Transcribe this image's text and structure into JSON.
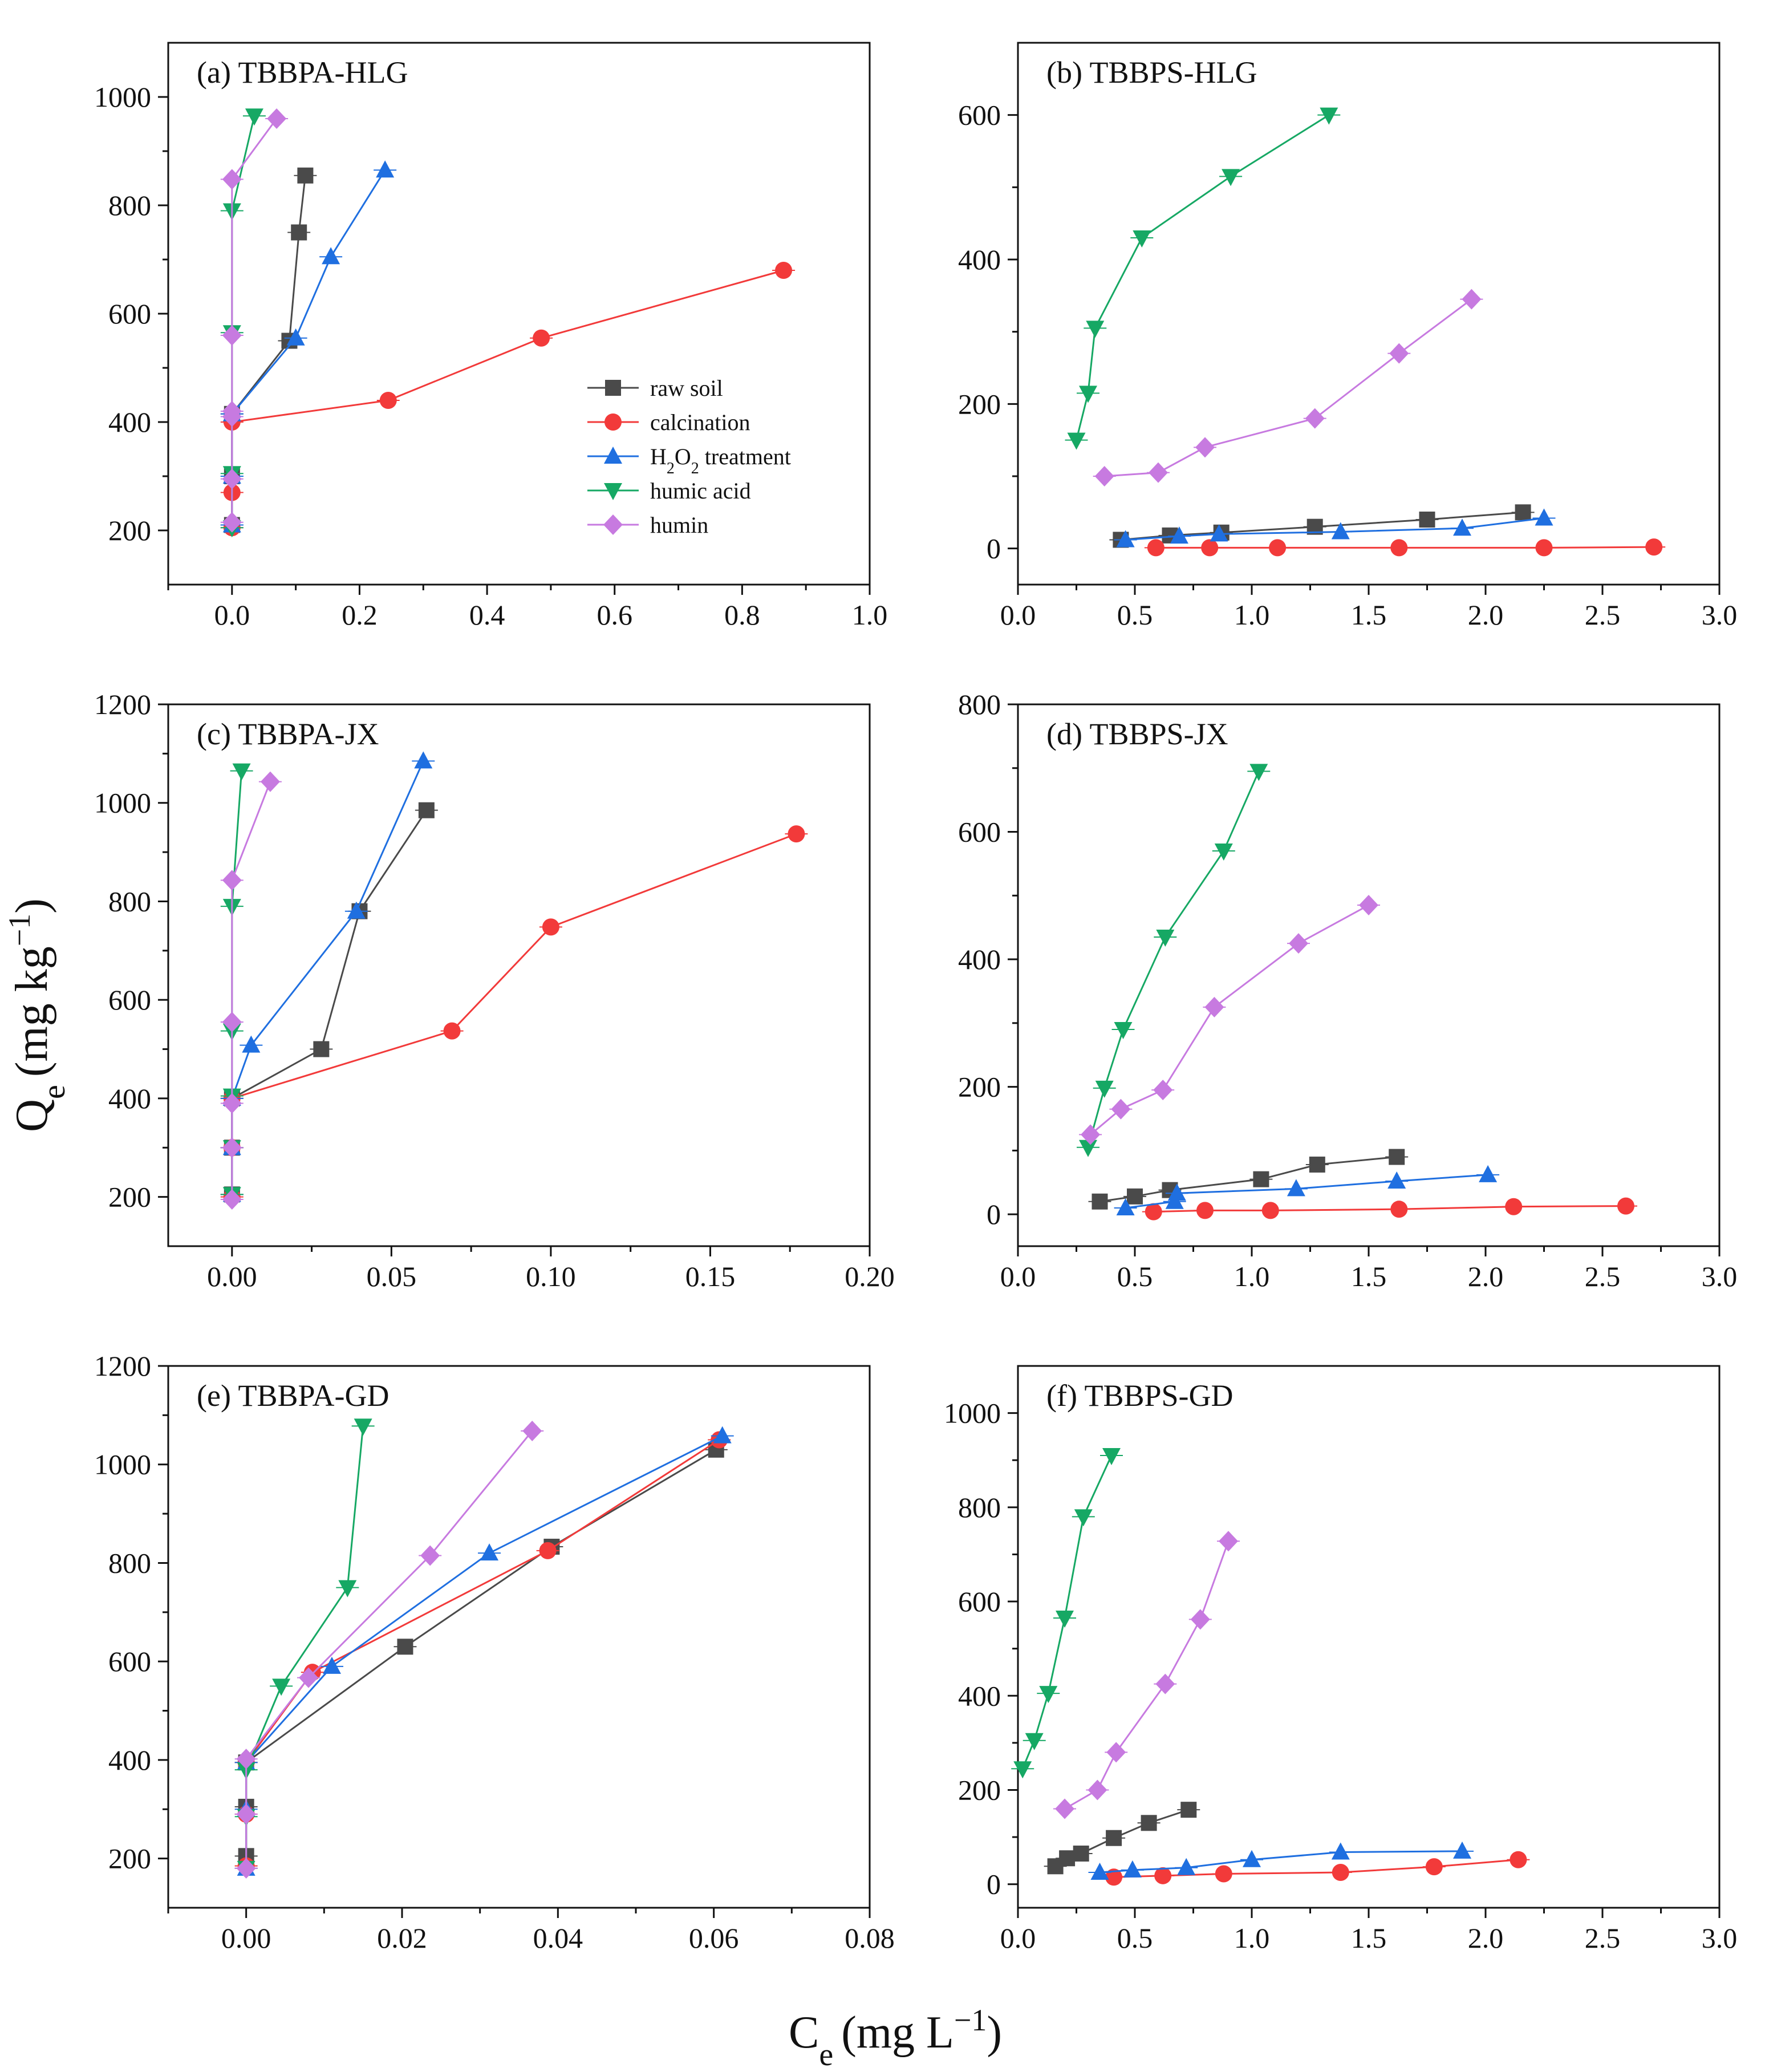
{
  "figure": {
    "ylabel_main": "Q",
    "ylabel_sub": "e",
    "ylabel_unit": "(mg kg",
    "ylabel_exp": "−1",
    "ylabel_close": ")",
    "xlabel_main": "C",
    "xlabel_sub": "e",
    "xlabel_unit": "(mg L",
    "xlabel_exp": "−1",
    "xlabel_close": ")"
  },
  "series_styles": [
    {
      "key": "raw",
      "name": "raw soil",
      "color": "#4a4a4a",
      "marker": "square"
    },
    {
      "key": "cal",
      "name": "calcination",
      "color": "#f23a3a",
      "marker": "circle"
    },
    {
      "key": "h2o2",
      "name": "H2O2 treatment",
      "name_parts": [
        "H",
        "2",
        "O",
        "2",
        " treatment"
      ],
      "color": "#1f6fe0",
      "marker": "triangle-up"
    },
    {
      "key": "ha",
      "name": "humic acid",
      "color": "#16a864",
      "marker": "triangle-down"
    },
    {
      "key": "hum",
      "name": "humin",
      "color": "#c77ae0",
      "marker": "diamond"
    }
  ],
  "chart_data": [
    {
      "id": "a",
      "type": "line",
      "title": "(a)  TBBPA-HLG",
      "xlim": [
        -0.1,
        1.0
      ],
      "ylim": [
        100,
        1100
      ],
      "xticks": [
        0.0,
        0.2,
        0.4,
        0.6,
        0.8,
        1.0
      ],
      "xtick_labels": [
        "0.0",
        "0.2",
        "0.4",
        "0.6",
        "0.8",
        "1.0"
      ],
      "yticks": [
        200,
        400,
        600,
        800,
        1000
      ],
      "ytick_labels": [
        "200",
        "400",
        "600",
        "800",
        "1000"
      ],
      "legend": true,
      "series": [
        {
          "key": "raw",
          "x": [
            0.0,
            0.0,
            0.0,
            0.09,
            0.105,
            0.115
          ],
          "y": [
            210,
            300,
            415,
            550,
            750,
            855
          ]
        },
        {
          "key": "cal",
          "x": [
            0.0,
            0.0,
            0.0,
            0.245,
            0.485,
            0.865
          ],
          "y": [
            205,
            270,
            400,
            440,
            555,
            680
          ]
        },
        {
          "key": "h2o2",
          "x": [
            0.0,
            0.0,
            0.0,
            0.1,
            0.155,
            0.24
          ],
          "y": [
            210,
            300,
            415,
            555,
            705,
            865
          ]
        },
        {
          "key": "ha",
          "x": [
            0.0,
            0.0,
            0.0,
            0.0,
            0.035
          ],
          "y": [
            205,
            305,
            565,
            790,
            965
          ]
        },
        {
          "key": "hum",
          "x": [
            0.0,
            0.0,
            0.0,
            0.0,
            0.0,
            0.0,
            0.07
          ],
          "y": [
            215,
            295,
            410,
            420,
            560,
            848,
            960
          ]
        }
      ]
    },
    {
      "id": "b",
      "type": "line",
      "title": "(b)  TBBPS-HLG",
      "xlim": [
        0.0,
        3.0
      ],
      "ylim": [
        -50,
        700
      ],
      "xticks": [
        0.0,
        0.5,
        1.0,
        1.5,
        2.0,
        2.5,
        3.0
      ],
      "xtick_labels": [
        "0.0",
        "0.5",
        "1.0",
        "1.5",
        "2.0",
        "2.5",
        "3.0"
      ],
      "yticks": [
        0,
        200,
        400,
        600
      ],
      "ytick_labels": [
        "0",
        "200",
        "400",
        "600"
      ],
      "legend": false,
      "series": [
        {
          "key": "raw",
          "x": [
            0.44,
            0.65,
            0.87,
            1.27,
            1.75,
            2.16
          ],
          "y": [
            12,
            18,
            22,
            30,
            40,
            50
          ]
        },
        {
          "key": "cal",
          "x": [
            0.59,
            0.82,
            1.11,
            1.63,
            2.25,
            2.72
          ],
          "y": [
            1,
            1,
            1,
            1,
            1,
            2
          ]
        },
        {
          "key": "h2o2",
          "x": [
            0.46,
            0.69,
            0.86,
            1.38,
            1.9,
            2.25
          ],
          "y": [
            12,
            17,
            20,
            23,
            28,
            42
          ]
        },
        {
          "key": "ha",
          "x": [
            0.25,
            0.3,
            0.33,
            0.53,
            0.91,
            1.33
          ],
          "y": [
            150,
            215,
            305,
            430,
            515,
            600
          ]
        },
        {
          "key": "hum",
          "x": [
            0.37,
            0.6,
            0.8,
            1.27,
            1.63,
            1.94
          ],
          "y": [
            100,
            105,
            140,
            180,
            270,
            345
          ]
        }
      ]
    },
    {
      "id": "c",
      "type": "line",
      "title": "(c)  TBBPA-JX",
      "xlim": [
        -0.02,
        0.2
      ],
      "ylim": [
        100,
        1200
      ],
      "xticks": [
        0.0,
        0.05,
        0.1,
        0.15,
        0.2
      ],
      "xtick_labels": [
        "0.00",
        "0.05",
        "0.10",
        "0.15",
        "0.20"
      ],
      "yticks": [
        200,
        400,
        600,
        800,
        1000,
        1200
      ],
      "ytick_labels": [
        "200",
        "400",
        "600",
        "800",
        "1000",
        "1200"
      ],
      "legend": false,
      "series": [
        {
          "key": "raw",
          "x": [
            0.0,
            0.0,
            0.0,
            0.028,
            0.04,
            0.061
          ],
          "y": [
            205,
            300,
            400,
            500,
            780,
            985
          ]
        },
        {
          "key": "cal",
          "x": [
            0.0,
            0.0,
            0.0,
            0.069,
            0.1,
            0.177
          ],
          "y": [
            200,
            300,
            400,
            537,
            748,
            937
          ]
        },
        {
          "key": "h2o2",
          "x": [
            0.0,
            0.0,
            0.0,
            0.006,
            0.039,
            0.06
          ],
          "y": [
            205,
            300,
            400,
            508,
            780,
            1085
          ]
        },
        {
          "key": "ha",
          "x": [
            0.0,
            0.0,
            0.0,
            0.0,
            0.0,
            0.003
          ],
          "y": [
            205,
            300,
            405,
            537,
            790,
            1065
          ]
        },
        {
          "key": "hum",
          "x": [
            0.0,
            0.0,
            0.0,
            0.0,
            0.0,
            0.012
          ],
          "y": [
            195,
            300,
            390,
            555,
            843,
            1043
          ]
        }
      ]
    },
    {
      "id": "d",
      "type": "line",
      "title": "(d)  TBBPS-JX",
      "xlim": [
        0.0,
        3.0
      ],
      "ylim": [
        -50,
        800
      ],
      "xticks": [
        0.0,
        0.5,
        1.0,
        1.5,
        2.0,
        2.5,
        3.0
      ],
      "xtick_labels": [
        "0.0",
        "0.5",
        "1.0",
        "1.5",
        "2.0",
        "2.5",
        "3.0"
      ],
      "yticks": [
        0,
        200,
        400,
        600,
        800
      ],
      "ytick_labels": [
        "0",
        "200",
        "400",
        "600",
        "800"
      ],
      "legend": false,
      "series": [
        {
          "key": "raw",
          "x": [
            0.35,
            0.5,
            0.65,
            1.04,
            1.28,
            1.62
          ],
          "y": [
            20,
            28,
            38,
            55,
            78,
            90
          ]
        },
        {
          "key": "cal",
          "x": [
            0.58,
            0.8,
            1.08,
            1.63,
            2.12,
            2.6
          ],
          "y": [
            4,
            6,
            6,
            8,
            12,
            13
          ]
        },
        {
          "key": "h2o2",
          "x": [
            0.46,
            0.67,
            0.68,
            1.19,
            1.62,
            2.01
          ],
          "y": [
            10,
            20,
            33,
            40,
            52,
            62
          ]
        },
        {
          "key": "ha",
          "x": [
            0.3,
            0.37,
            0.45,
            0.63,
            0.88,
            1.03
          ],
          "y": [
            105,
            198,
            290,
            435,
            570,
            695
          ]
        },
        {
          "key": "hum",
          "x": [
            0.31,
            0.44,
            0.62,
            0.84,
            1.2,
            1.5
          ],
          "y": [
            125,
            165,
            195,
            325,
            425,
            485
          ]
        }
      ]
    },
    {
      "id": "e",
      "type": "line",
      "title": "(e)  TBBPA-GD",
      "xlim": [
        -0.01,
        0.08
      ],
      "ylim": [
        100,
        1200
      ],
      "xticks": [
        0.0,
        0.02,
        0.04,
        0.06,
        0.08
      ],
      "xtick_labels": [
        "0.00",
        "0.02",
        "0.04",
        "0.06",
        "0.08"
      ],
      "yticks": [
        200,
        400,
        600,
        800,
        1000,
        1200
      ],
      "ytick_labels": [
        "200",
        "400",
        "600",
        "800",
        "1000",
        "1200"
      ],
      "legend": false,
      "series": [
        {
          "key": "raw",
          "x": [
            0.0,
            0.0,
            0.0,
            0.0204,
            0.0392,
            0.0603
          ],
          "y": [
            205,
            305,
            395,
            630,
            833,
            1030
          ]
        },
        {
          "key": "cal",
          "x": [
            0.0,
            0.0,
            0.0,
            0.0085,
            0.0387,
            0.0607
          ],
          "y": [
            185,
            290,
            395,
            578,
            825,
            1050
          ]
        },
        {
          "key": "h2o2",
          "x": [
            0.0,
            0.0,
            0.0,
            0.011,
            0.0312,
            0.0611
          ],
          "y": [
            180,
            300,
            395,
            590,
            820,
            1058
          ]
        },
        {
          "key": "ha",
          "x": [
            0.0,
            0.0,
            0.0,
            0.0045,
            0.013,
            0.015
          ],
          "y": [
            180,
            285,
            380,
            550,
            750,
            1078
          ]
        },
        {
          "key": "hum",
          "x": [
            0.0,
            0.0,
            0.0,
            0.008,
            0.0236,
            0.0367
          ],
          "y": [
            180,
            290,
            402,
            567,
            815,
            1068
          ]
        }
      ]
    },
    {
      "id": "f",
      "type": "line",
      "title": "(f)  TBBPS-GD",
      "xlim": [
        0.0,
        3.0
      ],
      "ylim": [
        -50,
        1100
      ],
      "xticks": [
        0.0,
        0.5,
        1.0,
        1.5,
        2.0,
        2.5,
        3.0
      ],
      "xtick_labels": [
        "0.0",
        "0.5",
        "1.0",
        "1.5",
        "2.0",
        "2.5",
        "3.0"
      ],
      "yticks": [
        0,
        200,
        400,
        600,
        800,
        1000
      ],
      "ytick_labels": [
        "0",
        "200",
        "400",
        "600",
        "800",
        "1000"
      ],
      "legend": false,
      "series": [
        {
          "key": "raw",
          "x": [
            0.16,
            0.21,
            0.27,
            0.41,
            0.56,
            0.73
          ],
          "y": [
            38,
            55,
            65,
            98,
            130,
            158
          ]
        },
        {
          "key": "cal",
          "x": [
            0.41,
            0.62,
            0.88,
            1.38,
            1.78,
            2.14
          ],
          "y": [
            15,
            18,
            22,
            25,
            37,
            52
          ]
        },
        {
          "key": "h2o2",
          "x": [
            0.35,
            0.49,
            0.72,
            1.0,
            1.38,
            1.9
          ],
          "y": [
            25,
            30,
            35,
            52,
            68,
            70
          ]
        },
        {
          "key": "ha",
          "x": [
            0.02,
            0.07,
            0.13,
            0.2,
            0.28,
            0.4
          ],
          "y": [
            245,
            305,
            405,
            565,
            780,
            910
          ]
        },
        {
          "key": "hum",
          "x": [
            0.2,
            0.34,
            0.42,
            0.63,
            0.78,
            0.9
          ],
          "y": [
            160,
            200,
            280,
            425,
            562,
            728
          ]
        }
      ]
    }
  ]
}
